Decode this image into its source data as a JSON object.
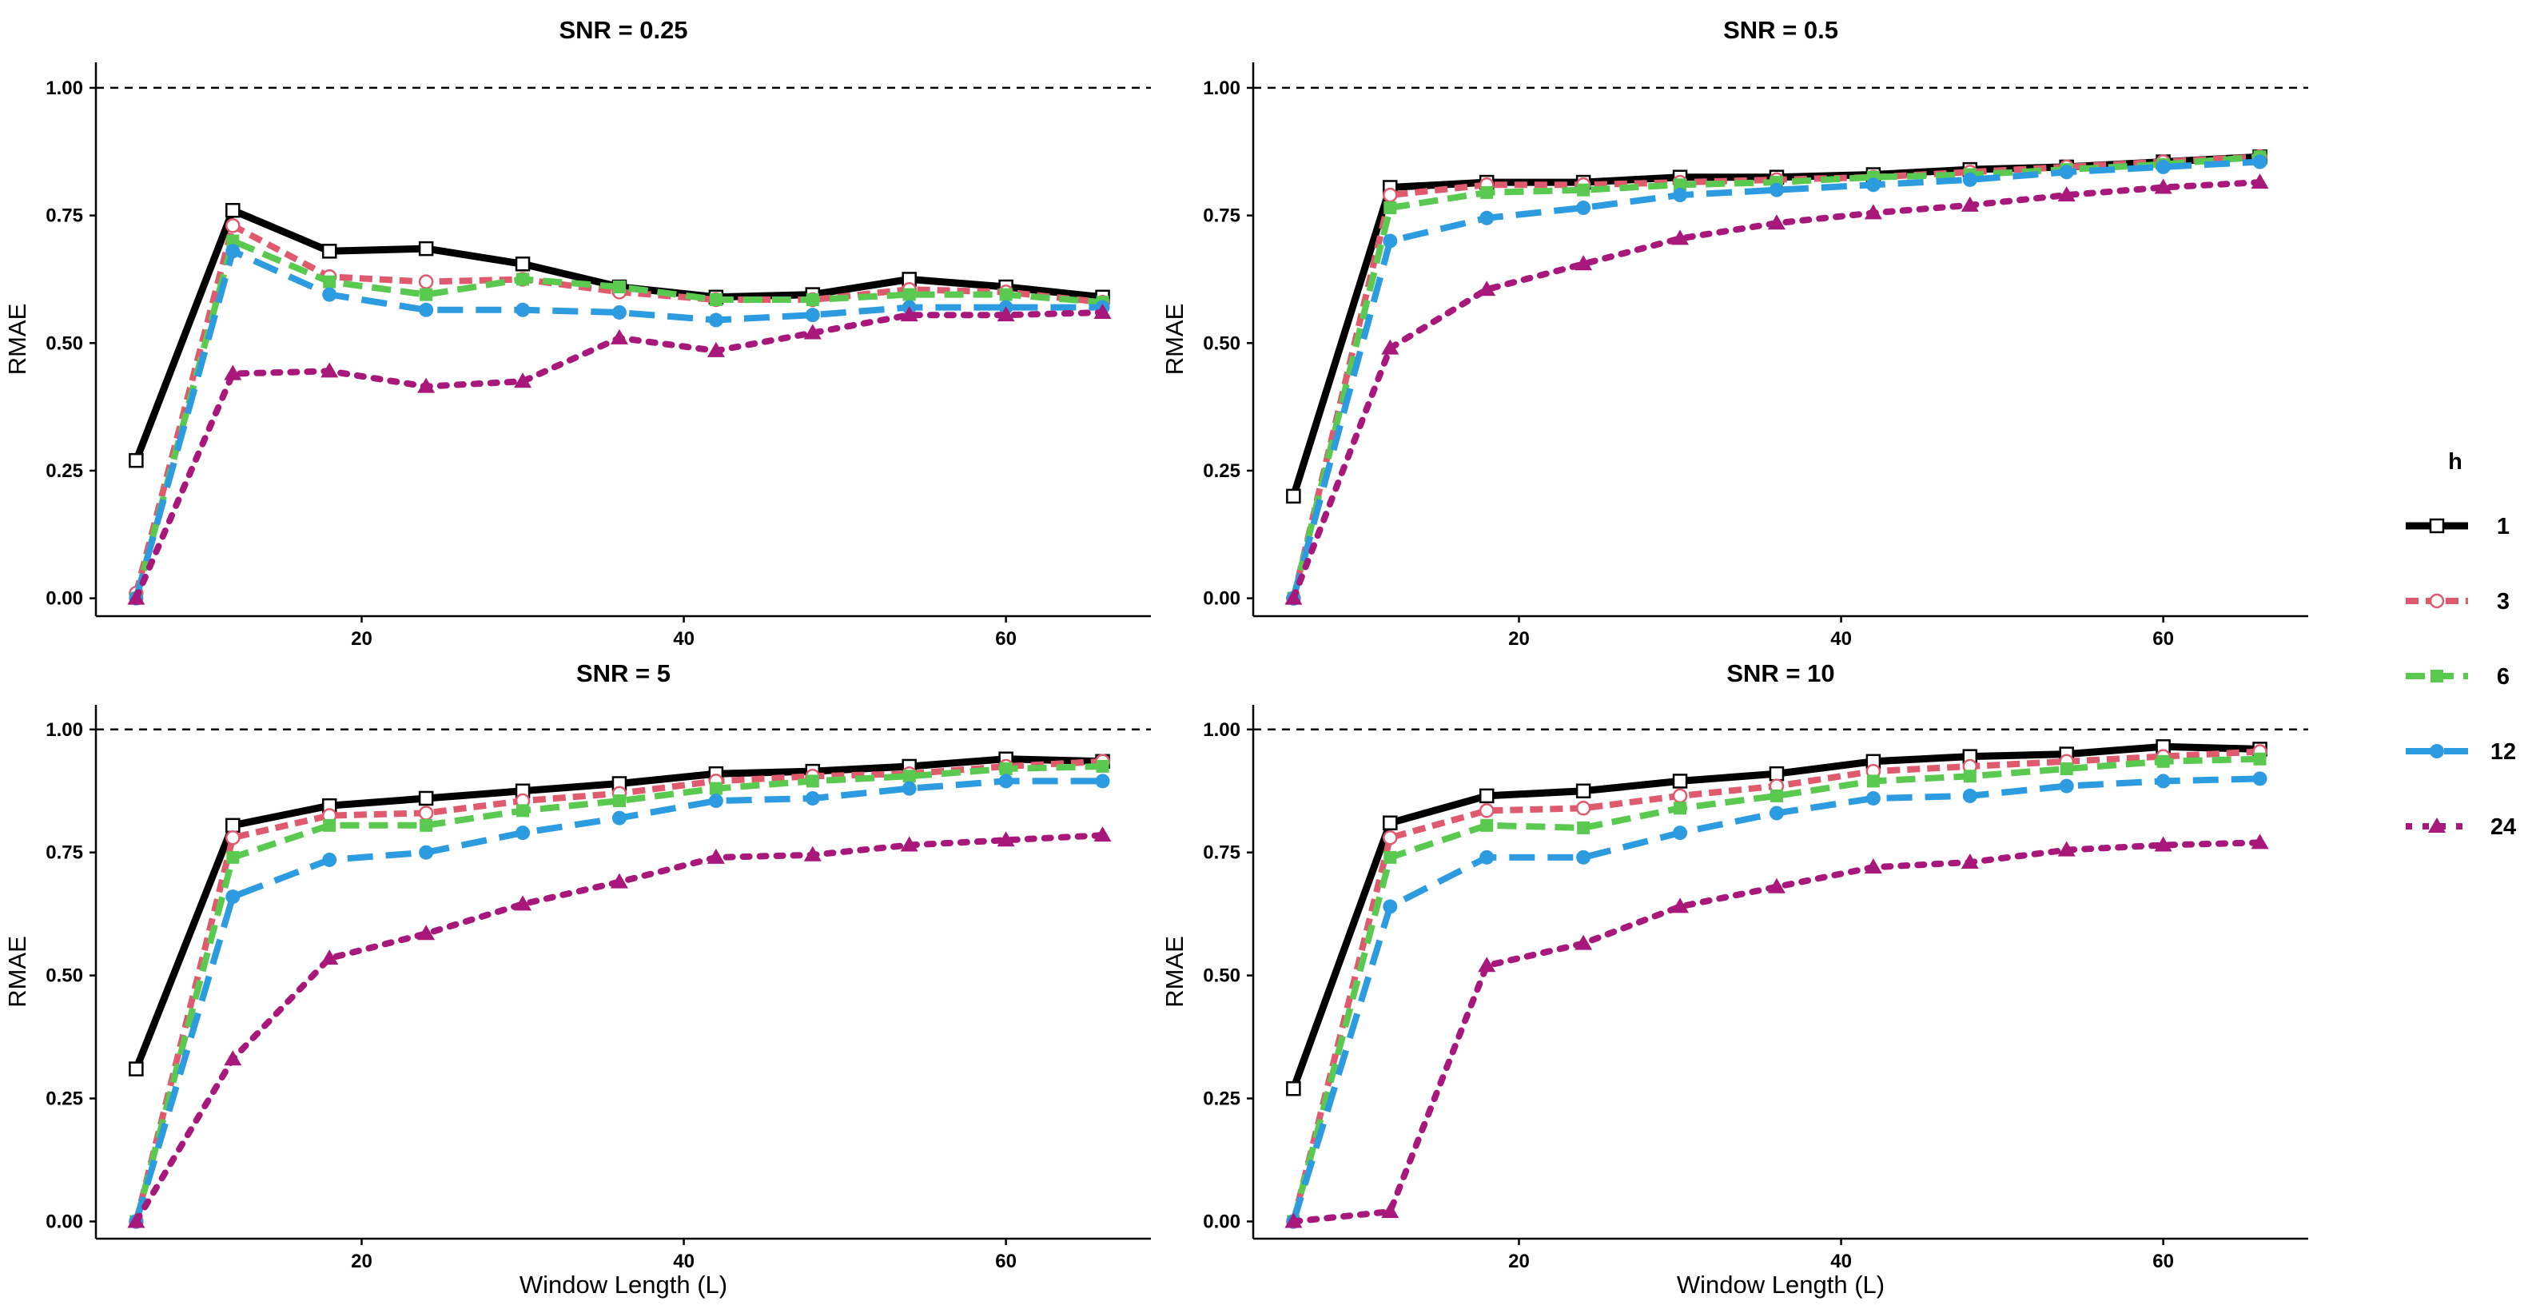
{
  "chart_data": [
    {
      "type": "line",
      "title": "SNR = 0.25",
      "xlabel": "",
      "ylabel": "RMAE",
      "x": [
        6,
        12,
        18,
        24,
        30,
        36,
        42,
        48,
        54,
        60,
        66
      ],
      "xlim": [
        3.5,
        69
      ],
      "ylim": [
        -0.035,
        1.05
      ],
      "xticks": [
        20,
        40,
        60
      ],
      "yticks": [
        0.0,
        0.25,
        0.5,
        0.75,
        1.0
      ],
      "ytick_labels": [
        "0.00",
        "0.25",
        "0.50",
        "0.75",
        "1.00"
      ],
      "reference_line": 1.0,
      "series": [
        {
          "name": "1",
          "values": [
            0.27,
            0.76,
            0.68,
            0.685,
            0.655,
            0.61,
            0.59,
            0.595,
            0.625,
            0.61,
            0.59
          ]
        },
        {
          "name": "3",
          "values": [
            0.01,
            0.73,
            0.63,
            0.62,
            0.625,
            0.6,
            0.585,
            0.585,
            0.605,
            0.6,
            0.58
          ]
        },
        {
          "name": "6",
          "values": [
            0.0,
            0.7,
            0.62,
            0.595,
            0.625,
            0.61,
            0.585,
            0.585,
            0.595,
            0.595,
            0.58
          ]
        },
        {
          "name": "12",
          "values": [
            0.0,
            0.68,
            0.595,
            0.565,
            0.565,
            0.56,
            0.545,
            0.555,
            0.57,
            0.57,
            0.57
          ]
        },
        {
          "name": "24",
          "values": [
            0.0,
            0.44,
            0.445,
            0.415,
            0.425,
            0.51,
            0.485,
            0.52,
            0.555,
            0.555,
            0.56
          ]
        }
      ]
    },
    {
      "type": "line",
      "title": "SNR = 0.5",
      "xlabel": "",
      "ylabel": "RMAE",
      "x": [
        6,
        12,
        18,
        24,
        30,
        36,
        42,
        48,
        54,
        60,
        66
      ],
      "xlim": [
        3.5,
        69
      ],
      "ylim": [
        -0.035,
        1.05
      ],
      "xticks": [
        20,
        40,
        60
      ],
      "yticks": [
        0.0,
        0.25,
        0.5,
        0.75,
        1.0
      ],
      "ytick_labels": [
        "0.00",
        "0.25",
        "0.50",
        "0.75",
        "1.00"
      ],
      "reference_line": 1.0,
      "series": [
        {
          "name": "1",
          "values": [
            0.2,
            0.805,
            0.815,
            0.815,
            0.825,
            0.825,
            0.83,
            0.84,
            0.845,
            0.855,
            0.865
          ]
        },
        {
          "name": "3",
          "values": [
            0.0,
            0.79,
            0.81,
            0.81,
            0.815,
            0.82,
            0.825,
            0.835,
            0.845,
            0.855,
            0.865
          ]
        },
        {
          "name": "6",
          "values": [
            0.0,
            0.765,
            0.795,
            0.8,
            0.81,
            0.815,
            0.825,
            0.83,
            0.84,
            0.85,
            0.865
          ]
        },
        {
          "name": "12",
          "values": [
            0.0,
            0.7,
            0.745,
            0.765,
            0.79,
            0.8,
            0.81,
            0.82,
            0.835,
            0.845,
            0.855
          ]
        },
        {
          "name": "24",
          "values": [
            0.0,
            0.49,
            0.605,
            0.655,
            0.705,
            0.735,
            0.755,
            0.77,
            0.79,
            0.805,
            0.815
          ]
        }
      ]
    },
    {
      "type": "line",
      "title": "SNR = 5",
      "xlabel": "Window Length (L)",
      "ylabel": "RMAE",
      "x": [
        6,
        12,
        18,
        24,
        30,
        36,
        42,
        48,
        54,
        60,
        66
      ],
      "xlim": [
        3.5,
        69
      ],
      "ylim": [
        -0.035,
        1.05
      ],
      "xticks": [
        20,
        40,
        60
      ],
      "yticks": [
        0.0,
        0.25,
        0.5,
        0.75,
        1.0
      ],
      "ytick_labels": [
        "0.00",
        "0.25",
        "0.50",
        "0.75",
        "1.00"
      ],
      "reference_line": 1.0,
      "series": [
        {
          "name": "1",
          "values": [
            0.31,
            0.805,
            0.845,
            0.86,
            0.875,
            0.89,
            0.91,
            0.915,
            0.925,
            0.94,
            0.935
          ]
        },
        {
          "name": "3",
          "values": [
            0.0,
            0.78,
            0.825,
            0.83,
            0.855,
            0.87,
            0.895,
            0.905,
            0.91,
            0.925,
            0.935
          ]
        },
        {
          "name": "6",
          "values": [
            0.0,
            0.74,
            0.805,
            0.805,
            0.835,
            0.855,
            0.88,
            0.895,
            0.905,
            0.92,
            0.925
          ]
        },
        {
          "name": "12",
          "values": [
            0.0,
            0.66,
            0.735,
            0.75,
            0.79,
            0.82,
            0.855,
            0.86,
            0.88,
            0.895,
            0.895
          ]
        },
        {
          "name": "24",
          "values": [
            0.0,
            0.33,
            0.535,
            0.585,
            0.645,
            0.69,
            0.74,
            0.745,
            0.765,
            0.775,
            0.785
          ]
        }
      ]
    },
    {
      "type": "line",
      "title": "SNR = 10",
      "xlabel": "Window Length (L)",
      "ylabel": "RMAE",
      "x": [
        6,
        12,
        18,
        24,
        30,
        36,
        42,
        48,
        54,
        60,
        66
      ],
      "xlim": [
        3.5,
        69
      ],
      "ylim": [
        -0.035,
        1.05
      ],
      "xticks": [
        20,
        40,
        60
      ],
      "yticks": [
        0.0,
        0.25,
        0.5,
        0.75,
        1.0
      ],
      "ytick_labels": [
        "0.00",
        "0.25",
        "0.50",
        "0.75",
        "1.00"
      ],
      "reference_line": 1.0,
      "series": [
        {
          "name": "1",
          "values": [
            0.27,
            0.81,
            0.865,
            0.875,
            0.895,
            0.91,
            0.935,
            0.945,
            0.95,
            0.965,
            0.96
          ]
        },
        {
          "name": "3",
          "values": [
            0.0,
            0.78,
            0.835,
            0.84,
            0.865,
            0.885,
            0.915,
            0.925,
            0.935,
            0.945,
            0.955
          ]
        },
        {
          "name": "6",
          "values": [
            0.0,
            0.74,
            0.805,
            0.8,
            0.84,
            0.865,
            0.895,
            0.905,
            0.92,
            0.935,
            0.94
          ]
        },
        {
          "name": "12",
          "values": [
            0.0,
            0.64,
            0.74,
            0.74,
            0.79,
            0.83,
            0.86,
            0.865,
            0.885,
            0.895,
            0.9
          ]
        },
        {
          "name": "24",
          "values": [
            0.0,
            0.02,
            0.52,
            0.565,
            0.64,
            0.68,
            0.72,
            0.73,
            0.755,
            0.765,
            0.77
          ]
        }
      ]
    }
  ],
  "legend": {
    "title": "h",
    "placement": "right",
    "entries": [
      {
        "label": "1",
        "color": "#000000",
        "dash": "solid",
        "marker": "square-open"
      },
      {
        "label": "3",
        "color": "#E05A6E",
        "dash": "dashed-short",
        "marker": "circle-open"
      },
      {
        "label": "6",
        "color": "#5AC94F",
        "dash": "dashed",
        "marker": "square-filled"
      },
      {
        "label": "12",
        "color": "#2C9BE0",
        "dash": "dashed-long",
        "marker": "circle-filled"
      },
      {
        "label": "24",
        "color": "#A8177A",
        "dash": "dotted",
        "marker": "triangle-filled"
      }
    ]
  }
}
